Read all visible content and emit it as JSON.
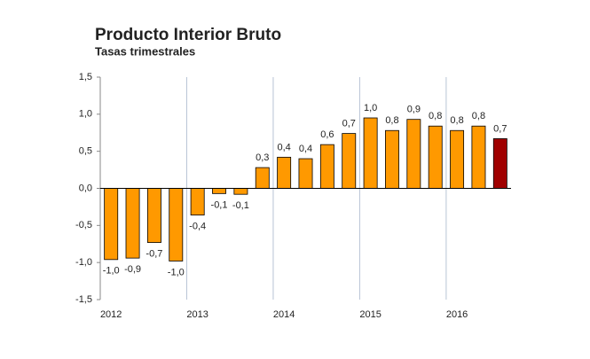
{
  "chart_data": {
    "type": "bar",
    "title": "Producto Interior Bruto",
    "subtitle": "Tasas trimestrales",
    "categories": [
      "2012",
      null,
      null,
      null,
      "2013",
      null,
      null,
      null,
      "2014",
      null,
      null,
      null,
      "2015",
      null,
      null,
      null,
      "2016",
      null,
      null
    ],
    "values": [
      -0.96,
      -0.94,
      -0.73,
      -0.98,
      -0.36,
      -0.07,
      -0.08,
      0.28,
      0.42,
      0.4,
      0.59,
      0.74,
      0.95,
      0.78,
      0.93,
      0.84,
      0.78,
      0.84,
      0.67
    ],
    "value_labels": [
      "-1,0",
      "-0,9",
      "-0,7",
      "-1,0",
      "-0,4",
      "-0,1",
      "-0,1",
      "0,3",
      "0,4",
      "0,4",
      "0,6",
      "0,7",
      "1,0",
      "0,8",
      "0,9",
      "0,8",
      "0,8",
      "0,8",
      "0,7"
    ],
    "colors": [
      "#ff9900",
      "#ff9900",
      "#ff9900",
      "#ff9900",
      "#ff9900",
      "#ff9900",
      "#ff9900",
      "#ff9900",
      "#ff9900",
      "#ff9900",
      "#ff9900",
      "#ff9900",
      "#ff9900",
      "#ff9900",
      "#ff9900",
      "#ff9900",
      "#ff9900",
      "#ff9900",
      "#a00000"
    ],
    "ylim": [
      -1.5,
      1.5
    ],
    "yticks": [
      {
        "value": -1.5,
        "label": "-1,5"
      },
      {
        "value": -1.0,
        "label": "-1,0"
      },
      {
        "value": -0.5,
        "label": "-0,5"
      },
      {
        "value": 0,
        "label": "0,0"
      },
      {
        "value": 0.5,
        "label": "0,5"
      },
      {
        "value": 1.0,
        "label": "1,0"
      },
      {
        "value": 1.5,
        "label": "1,5"
      }
    ],
    "grid": false
  }
}
